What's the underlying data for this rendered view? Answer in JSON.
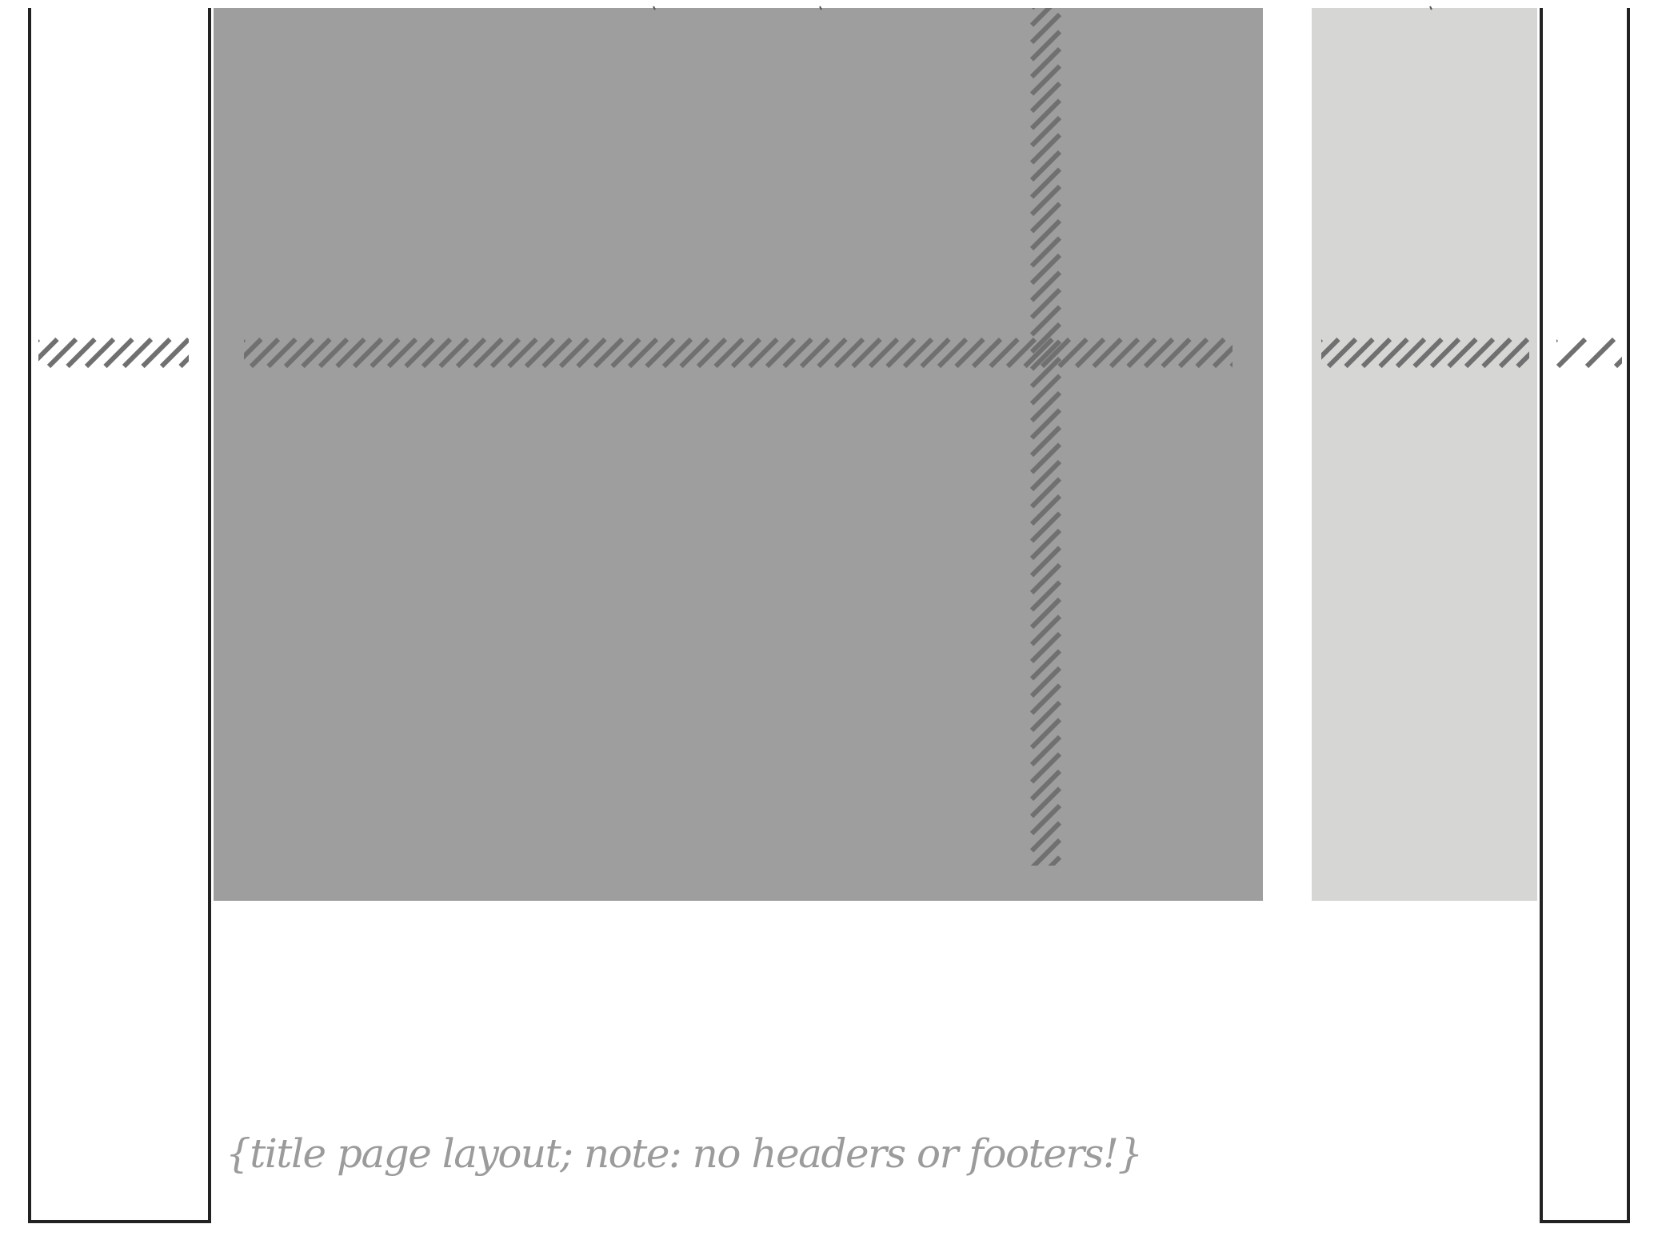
{
  "diagram": {
    "note": "{title page layout; note: no headers or footers!}",
    "colors": {
      "text_block_fill": "#9e9e9e",
      "margin_note_fill": "#d6d6d5",
      "hatch": "#707070",
      "page_edge": "#222222",
      "note_text": "#9b9b9b",
      "background": "#ffffff"
    }
  }
}
